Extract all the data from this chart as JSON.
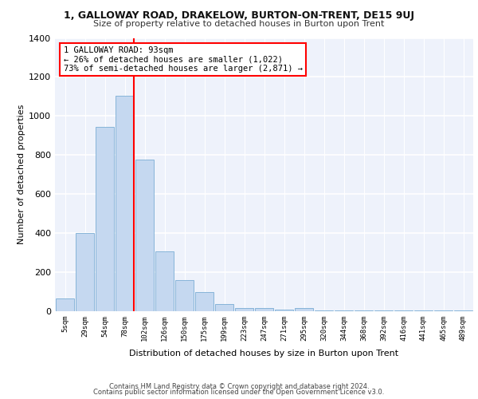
{
  "title": "1, GALLOWAY ROAD, DRAKELOW, BURTON-ON-TRENT, DE15 9UJ",
  "subtitle": "Size of property relative to detached houses in Burton upon Trent",
  "xlabel": "Distribution of detached houses by size in Burton upon Trent",
  "ylabel": "Number of detached properties",
  "bar_values": [
    65,
    400,
    945,
    1105,
    775,
    305,
    160,
    100,
    35,
    18,
    15,
    10,
    15,
    5,
    5,
    3,
    3,
    3,
    3,
    3,
    3
  ],
  "all_bar_labels": [
    "5sqm",
    "29sqm",
    "54sqm",
    "78sqm",
    "102sqm",
    "126sqm",
    "150sqm",
    "175sqm",
    "199sqm",
    "223sqm",
    "247sqm",
    "271sqm",
    "295sqm",
    "320sqm",
    "344sqm",
    "368sqm",
    "392sqm",
    "416sqm",
    "441sqm",
    "465sqm",
    "489sqm"
  ],
  "bar_color": "#c5d8f0",
  "bar_edge_color": "#7aadd4",
  "annotation_title": "1 GALLOWAY ROAD: 93sqm",
  "annotation_line1": "← 26% of detached houses are smaller (1,022)",
  "annotation_line2": "73% of semi-detached houses are larger (2,871) →",
  "ylim": [
    0,
    1400
  ],
  "yticks": [
    0,
    200,
    400,
    600,
    800,
    1000,
    1200,
    1400
  ],
  "footer1": "Contains HM Land Registry data © Crown copyright and database right 2024.",
  "footer2": "Contains public sector information licensed under the Open Government Licence v3.0.",
  "bg_color": "#eef2fb",
  "grid_color": "#ffffff"
}
